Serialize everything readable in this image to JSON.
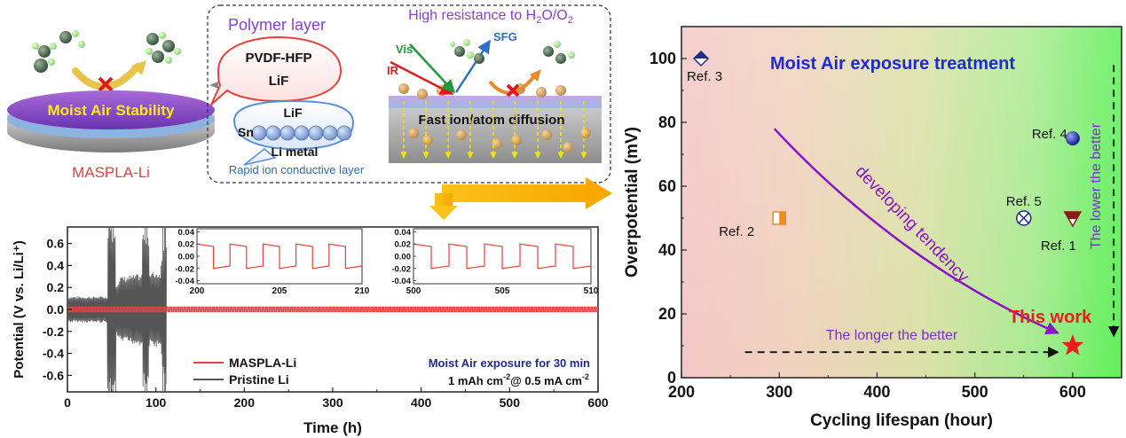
{
  "schematic": {
    "disk_label": "Moist Air Stability",
    "caption": "MASPLA-Li",
    "polymer_title": "Polymer layer",
    "bubble_line1": "PVDF-HFP",
    "bubble_line2": "LiF",
    "layer_lif": "LiF",
    "layer_sn": "Sn",
    "layer_li": "Li metal",
    "rapid_caption": "Rapid ion conductive layer",
    "resistance_title_pre": "High resistance to H",
    "resistance_sub1": "2",
    "resistance_mid": "O/O",
    "resistance_sub2": "2",
    "vis_label": "Vis",
    "sfg_label": "SFG",
    "ir_label": "IR",
    "diffusion_label": "Fast ion/atom diffusion"
  },
  "chart_data": [
    {
      "type": "line",
      "xlabel": "Time (h)",
      "ylabel": "Potential (V vs. Li/Li⁺)",
      "xlim": [
        0,
        600
      ],
      "ylim": [
        -0.75,
        0.75
      ],
      "xticks": [
        "0",
        "100",
        "200",
        "300",
        "400",
        "500",
        "600"
      ],
      "yticks": [
        "-0.6",
        "-0.4",
        "-0.2",
        "0.0",
        "0.2",
        "0.4",
        "0.6"
      ],
      "series": [
        {
          "name": "MASPLA-Li",
          "color": "#e8413a",
          "amplitude": 0.02,
          "span": [
            0,
            600
          ]
        },
        {
          "name": "Pristine Li",
          "color": "#555555",
          "amplitude_profile": [
            [
              0,
              0.12
            ],
            [
              45,
              0.12
            ],
            [
              60,
              0.3
            ],
            [
              105,
              0.35
            ],
            [
              110,
              0.7
            ]
          ],
          "short_circuit_at": 112
        }
      ],
      "legend_position": "bottom-left",
      "annotation_title": "Moist Air exposure for 30 min",
      "annotation_cond_pre": "1 mAh cm",
      "annotation_cond_sup1": "-2",
      "annotation_cond_mid": "@ 0.5 mA cm",
      "annotation_cond_sup2": "-2",
      "insets": [
        {
          "xlim": [
            200,
            210
          ],
          "ylim": [
            -0.045,
            0.045
          ],
          "xticks": [
            "200",
            "205",
            "210"
          ],
          "yticks": [
            "0.04",
            "0.02",
            "0.00",
            "-0.02",
            "-0.04"
          ],
          "amplitude": 0.02
        },
        {
          "xlim": [
            500,
            510
          ],
          "ylim": [
            -0.045,
            0.045
          ],
          "xticks": [
            "500",
            "505",
            "510"
          ],
          "yticks": [
            "0.04",
            "0.02",
            "0.00",
            "-0.02",
            "-0.04"
          ],
          "amplitude": 0.02
        }
      ]
    },
    {
      "type": "scatter",
      "title": "Moist Air exposure treatment",
      "xlabel": "Cycling lifespan (hour)",
      "ylabel": "Overpotential (mV)",
      "xlim": [
        200,
        650
      ],
      "ylim": [
        0,
        110
      ],
      "xticks": [
        "200",
        "300",
        "400",
        "500",
        "600"
      ],
      "yticks": [
        "0",
        "20",
        "40",
        "60",
        "80",
        "100"
      ],
      "points": [
        {
          "label": "Ref. 3",
          "x": 220,
          "y": 100,
          "color": "#1f2a8c"
        },
        {
          "label": "Ref. 2",
          "x": 300,
          "y": 50,
          "color": "#f08a1c"
        },
        {
          "label": "Ref. 4",
          "x": 600,
          "y": 75,
          "color": "#2430a0"
        },
        {
          "label": "Ref. 5",
          "x": 550,
          "y": 50,
          "color": "#1f2a8c"
        },
        {
          "label": "Ref. 1",
          "x": 600,
          "y": 50,
          "color": "#8b1a1a"
        },
        {
          "label": "This work",
          "x": 600,
          "y": 10,
          "color": "#ee1c1c"
        }
      ],
      "annotations": {
        "curve_label": "developing tendency",
        "x_arrow_label": "The longer the better",
        "y_arrow_label": "The lower the better"
      }
    }
  ]
}
